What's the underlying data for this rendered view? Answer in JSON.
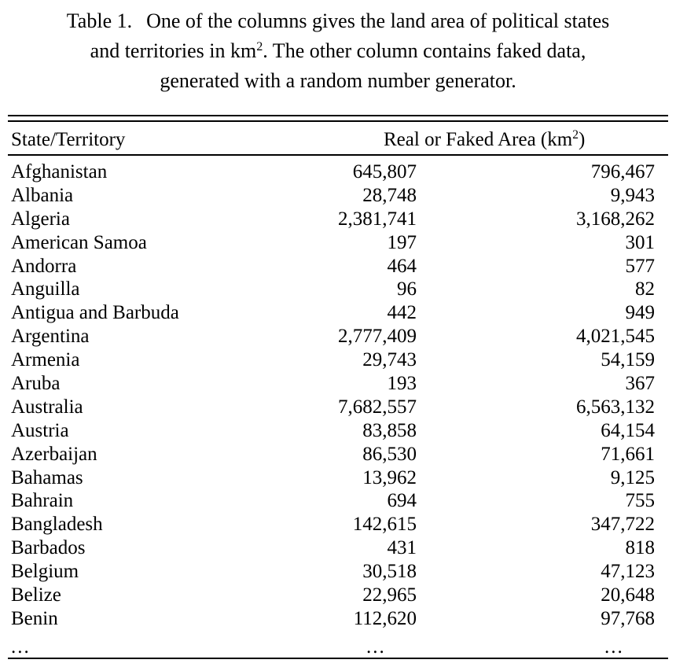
{
  "caption": {
    "label": "Table 1.",
    "line1": "One of the columns gives the land area of political states",
    "line2_pre": "and territories in km",
    "line2_sup": "2",
    "line2_post": ". The other column contains faked data,",
    "line3": "generated with a random number generator."
  },
  "table": {
    "header_state": "State/Territory",
    "header_area_pre": "Real or Faked Area (km",
    "header_area_sup": "2",
    "header_area_post": ")",
    "rows": [
      {
        "name": "Afghanistan",
        "a": "645,807",
        "b": "796,467"
      },
      {
        "name": "Albania",
        "a": "28,748",
        "b": "9,943"
      },
      {
        "name": "Algeria",
        "a": "2,381,741",
        "b": "3,168,262"
      },
      {
        "name": "American Samoa",
        "a": "197",
        "b": "301"
      },
      {
        "name": "Andorra",
        "a": "464",
        "b": "577"
      },
      {
        "name": "Anguilla",
        "a": "96",
        "b": "82"
      },
      {
        "name": "Antigua and Barbuda",
        "a": "442",
        "b": "949"
      },
      {
        "name": "Argentina",
        "a": "2,777,409",
        "b": "4,021,545"
      },
      {
        "name": "Armenia",
        "a": "29,743",
        "b": "54,159"
      },
      {
        "name": "Aruba",
        "a": "193",
        "b": "367"
      },
      {
        "name": "Australia",
        "a": "7,682,557",
        "b": "6,563,132"
      },
      {
        "name": "Austria",
        "a": "83,858",
        "b": "64,154"
      },
      {
        "name": "Azerbaijan",
        "a": "86,530",
        "b": "71,661"
      },
      {
        "name": "Bahamas",
        "a": "13,962",
        "b": "9,125"
      },
      {
        "name": "Bahrain",
        "a": "694",
        "b": "755"
      },
      {
        "name": "Bangladesh",
        "a": "142,615",
        "b": "347,722"
      },
      {
        "name": "Barbados",
        "a": "431",
        "b": "818"
      },
      {
        "name": "Belgium",
        "a": "30,518",
        "b": "47,123"
      },
      {
        "name": "Belize",
        "a": "22,965",
        "b": "20,648"
      },
      {
        "name": "Benin",
        "a": "112,620",
        "b": "97,768"
      }
    ],
    "ellipsis": "..."
  }
}
